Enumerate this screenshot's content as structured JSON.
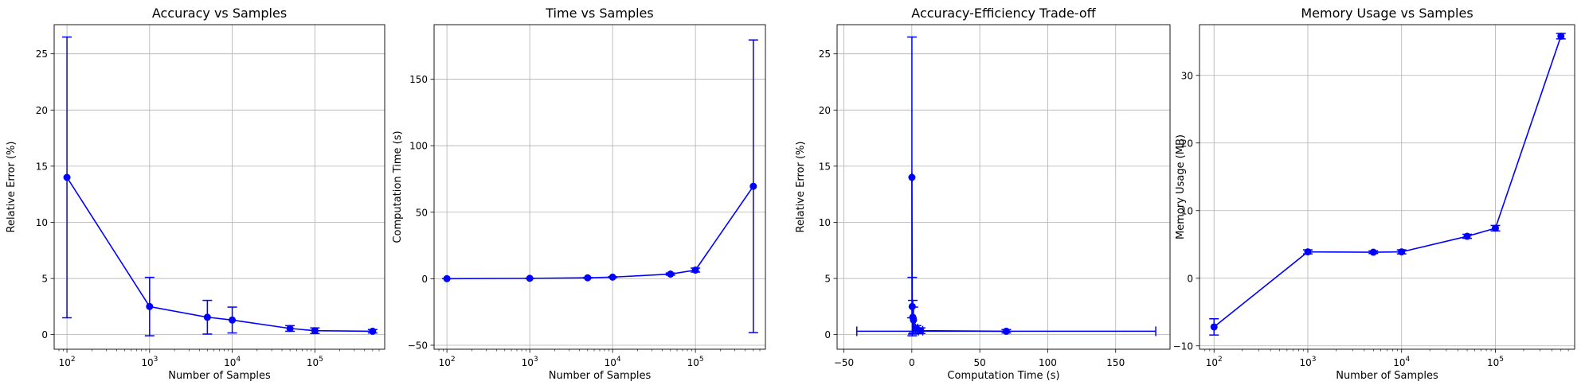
{
  "chart_data": [
    {
      "type": "line",
      "title": "Accuracy vs Samples",
      "xlabel": "Number of Samples",
      "ylabel": "Relative Error (%)",
      "xscale": "log",
      "xlim": [
        70,
        700000
      ],
      "ylim": [
        -1.3,
        27.6
      ],
      "grid": true,
      "color": "#0000ff",
      "x_ticks": [
        {
          "base": "10",
          "exp": "2",
          "value": 100
        },
        {
          "base": "10",
          "exp": "3",
          "value": 1000
        },
        {
          "base": "10",
          "exp": "4",
          "value": 10000
        },
        {
          "base": "10",
          "exp": "5",
          "value": 100000
        }
      ],
      "y_ticks": [
        {
          "label": "0",
          "value": 0
        },
        {
          "label": "5",
          "value": 5
        },
        {
          "label": "10",
          "value": 10
        },
        {
          "label": "15",
          "value": 15
        },
        {
          "label": "20",
          "value": 20
        },
        {
          "label": "25",
          "value": 25
        }
      ],
      "points": [
        {
          "x": 100,
          "y": 14.0,
          "yerr": 12.5
        },
        {
          "x": 1000,
          "y": 2.5,
          "yerr": 2.6
        },
        {
          "x": 5000,
          "y": 1.55,
          "yerr": 1.5
        },
        {
          "x": 10000,
          "y": 1.3,
          "yerr": 1.15
        },
        {
          "x": 50000,
          "y": 0.55,
          "yerr": 0.25
        },
        {
          "x": 100000,
          "y": 0.35,
          "yerr": 0.25
        },
        {
          "x": 500000,
          "y": 0.3,
          "yerr": 0.15
        }
      ]
    },
    {
      "type": "line",
      "title": "Time vs Samples",
      "xlabel": "Number of Samples",
      "ylabel": "Computation Time (s)",
      "xscale": "log",
      "xlim": [
        70,
        700000
      ],
      "ylim": [
        -53,
        191
      ],
      "grid": true,
      "color": "#0000ff",
      "x_ticks": [
        {
          "base": "10",
          "exp": "2",
          "value": 100
        },
        {
          "base": "10",
          "exp": "3",
          "value": 1000
        },
        {
          "base": "10",
          "exp": "4",
          "value": 10000
        },
        {
          "base": "10",
          "exp": "5",
          "value": 100000
        }
      ],
      "y_ticks": [
        {
          "label": "−50",
          "value": -50
        },
        {
          "label": "0",
          "value": 0
        },
        {
          "label": "50",
          "value": 50
        },
        {
          "label": "100",
          "value": 100
        },
        {
          "label": "150",
          "value": 150
        }
      ],
      "points": [
        {
          "x": 100,
          "y": 0.05,
          "yerr": 0.02
        },
        {
          "x": 1000,
          "y": 0.3,
          "yerr": 0.1
        },
        {
          "x": 5000,
          "y": 0.7,
          "yerr": 0.2
        },
        {
          "x": 10000,
          "y": 1.2,
          "yerr": 0.3
        },
        {
          "x": 50000,
          "y": 3.5,
          "yerr": 0.8
        },
        {
          "x": 100000,
          "y": 6.5,
          "yerr": 1.5
        },
        {
          "x": 500000,
          "y": 69.5,
          "yerr": 110
        }
      ]
    },
    {
      "type": "line",
      "title": "Accuracy-Efficiency Trade-off",
      "xlabel": "Computation Time (s)",
      "ylabel": "Relative Error (%)",
      "xscale": "linear",
      "xlim": [
        -55,
        190
      ],
      "ylim": [
        -1.3,
        27.6
      ],
      "grid": true,
      "color": "#0000ff",
      "x_ticks": [
        {
          "label": "−50",
          "value": -50
        },
        {
          "label": "0",
          "value": 0
        },
        {
          "label": "50",
          "value": 50
        },
        {
          "label": "100",
          "value": 100
        },
        {
          "label": "150",
          "value": 150
        }
      ],
      "y_ticks": [
        {
          "label": "0",
          "value": 0
        },
        {
          "label": "5",
          "value": 5
        },
        {
          "label": "10",
          "value": 10
        },
        {
          "label": "15",
          "value": 15
        },
        {
          "label": "20",
          "value": 20
        },
        {
          "label": "25",
          "value": 25
        }
      ],
      "points": [
        {
          "x": 0.05,
          "y": 14.0,
          "xerr": 0.02,
          "yerr": 12.5
        },
        {
          "x": 0.3,
          "y": 2.5,
          "xerr": 0.1,
          "yerr": 2.6
        },
        {
          "x": 0.7,
          "y": 1.55,
          "xerr": 0.2,
          "yerr": 1.5
        },
        {
          "x": 1.2,
          "y": 1.3,
          "xerr": 0.3,
          "yerr": 1.15
        },
        {
          "x": 3.5,
          "y": 0.55,
          "xerr": 0.8,
          "yerr": 0.25
        },
        {
          "x": 6.5,
          "y": 0.35,
          "xerr": 1.5,
          "yerr": 0.25
        },
        {
          "x": 69.5,
          "y": 0.3,
          "xerr": 110,
          "yerr": 0.15
        }
      ]
    },
    {
      "type": "line",
      "title": "Memory Usage vs Samples",
      "xlabel": "Number of Samples",
      "ylabel": "Memory Usage (MB)",
      "xscale": "log",
      "xlim": [
        70,
        700000
      ],
      "ylim": [
        -10.5,
        37.5
      ],
      "grid": true,
      "color": "#0000ff",
      "x_ticks": [
        {
          "base": "10",
          "exp": "2",
          "value": 100
        },
        {
          "base": "10",
          "exp": "3",
          "value": 1000
        },
        {
          "base": "10",
          "exp": "4",
          "value": 10000
        },
        {
          "base": "10",
          "exp": "5",
          "value": 100000
        }
      ],
      "y_ticks": [
        {
          "label": "−10",
          "value": -10
        },
        {
          "label": "0",
          "value": 0
        },
        {
          "label": "10",
          "value": 10
        },
        {
          "label": "20",
          "value": 20
        },
        {
          "label": "30",
          "value": 30
        }
      ],
      "points": [
        {
          "x": 100,
          "y": -7.2,
          "yerr": 1.2
        },
        {
          "x": 1000,
          "y": 3.9,
          "yerr": 0.3
        },
        {
          "x": 5000,
          "y": 3.85,
          "yerr": 0.2
        },
        {
          "x": 10000,
          "y": 3.9,
          "yerr": 0.3
        },
        {
          "x": 50000,
          "y": 6.2,
          "yerr": 0.3
        },
        {
          "x": 100000,
          "y": 7.4,
          "yerr": 0.4
        },
        {
          "x": 500000,
          "y": 35.8,
          "yerr": 0.4
        }
      ]
    }
  ]
}
